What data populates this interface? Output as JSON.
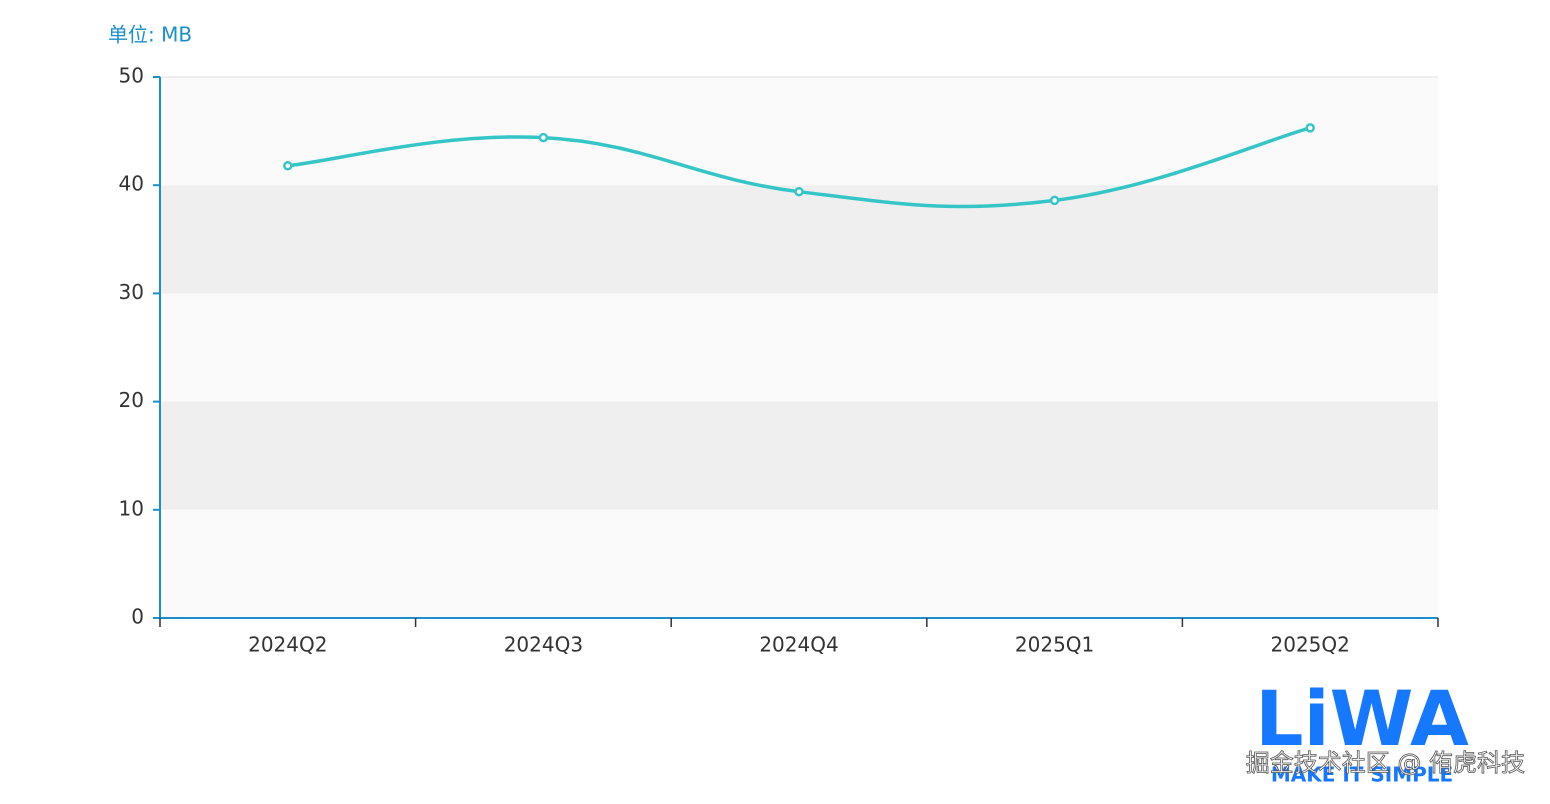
{
  "chart_data": {
    "type": "line",
    "y_axis_name": "单位: MB",
    "categories": [
      "2024Q2",
      "2024Q3",
      "2024Q4",
      "2025Q1",
      "2025Q2"
    ],
    "series": [
      {
        "color": "#36c5c6",
        "values": [
          41.8,
          44.4,
          39.4,
          38.6,
          45.3
        ]
      }
    ],
    "ylim": [
      0,
      50
    ],
    "yticks": [
      0,
      10,
      20,
      30,
      40,
      50
    ],
    "smooth": true,
    "split_area_colors": [
      "#fafafa",
      "#efefef"
    ],
    "axis_color": "#1a8fc9"
  },
  "watermark": {
    "logo": "LiWA",
    "tagline": "MAKE IT SIMPLE",
    "text": "掘金技术社区 @ 侑虎科技"
  }
}
